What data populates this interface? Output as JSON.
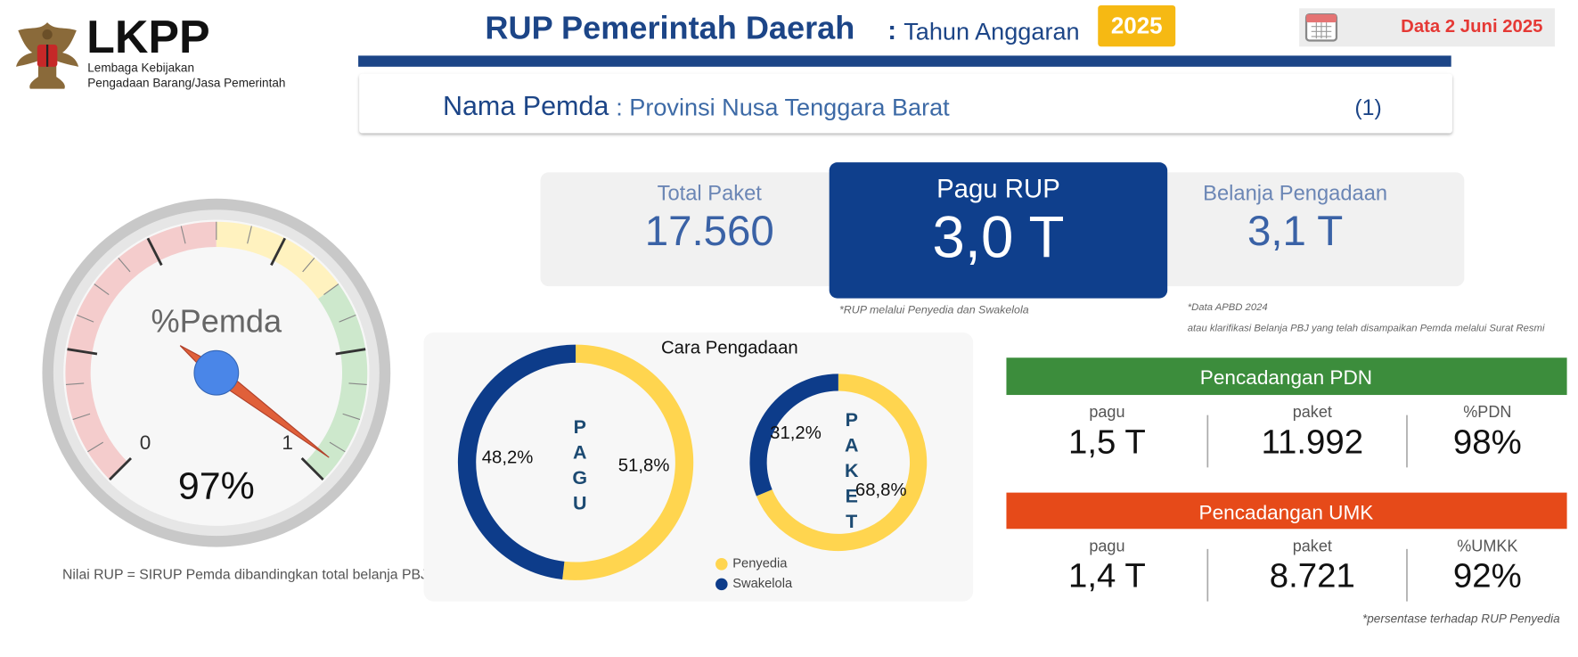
{
  "header": {
    "logo_title": "LKPP",
    "logo_subtitle_1": "Lembaga Kebijakan",
    "logo_subtitle_2": "Pengadaan Barang/Jasa Pemerintah",
    "title": "RUP Pemerintah Daerah",
    "title_separator": ":",
    "subtitle": "Tahun Anggaran",
    "year": "2025",
    "date": "Data 2 Juni 2025"
  },
  "filter": {
    "label": "Nama Pemda",
    "value": ": Provinsi Nusa Tenggara Barat",
    "count": "(1)"
  },
  "cards": [
    {
      "label": "Total Paket",
      "value": "17.560"
    },
    {
      "label": "Pagu RUP",
      "value": "3,0 T"
    },
    {
      "label": "Belanja Pengadaan",
      "value": "3,1 T"
    }
  ],
  "notes": {
    "rup": "*RUP melalui Penyedia dan Swakelola",
    "apbd_1": "*Data APBD 2024",
    "apbd_2": "atau klarifikasi Belanja PBJ yang telah disampaikan Pemda melalui Surat Resmi",
    "gauge": "Nilai RUP = SIRUP Pemda dibandingkan total belanja PBJ",
    "percent": "*persentase terhadap RUP Penyedia"
  },
  "gauge": {
    "title": "%Pemda",
    "min": 0,
    "max": 1,
    "value": 0.97,
    "value_label": "97%",
    "bands": [
      {
        "from": 0,
        "to": 0.5,
        "color": "#f4cccc"
      },
      {
        "from": 0.5,
        "to": 0.7,
        "color": "#fff2bf"
      },
      {
        "from": 0.7,
        "to": 1,
        "color": "#cde8cc"
      }
    ]
  },
  "chart_data": [
    {
      "type": "donut",
      "title": "Cara Pengadaan",
      "center_label": "PAGU",
      "categories": [
        "Penyedia",
        "Swakelola"
      ],
      "colors": [
        "#ffd54f",
        "#0d3c8a"
      ],
      "values": [
        51.8,
        48.2
      ],
      "value_labels": [
        "51,8%",
        "48,2%"
      ]
    },
    {
      "type": "donut",
      "center_label": "PAKET",
      "categories": [
        "Penyedia",
        "Swakelola"
      ],
      "colors": [
        "#ffd54f",
        "#0d3c8a"
      ],
      "values": [
        68.8,
        31.2
      ],
      "value_labels": [
        "68,8%",
        "31,2%"
      ]
    }
  ],
  "pdn": {
    "title": "Pencadangan PDN",
    "items": [
      {
        "label": "pagu",
        "value": "1,5 T"
      },
      {
        "label": "paket",
        "value": "11.992"
      },
      {
        "label": "%PDN",
        "value": "98%"
      }
    ]
  },
  "umk": {
    "title": "Pencadangan UMK",
    "items": [
      {
        "label": "pagu",
        "value": "1,4 T"
      },
      {
        "label": "paket",
        "value": "8.721"
      },
      {
        "label": "%UMKK",
        "value": "92%"
      }
    ]
  }
}
